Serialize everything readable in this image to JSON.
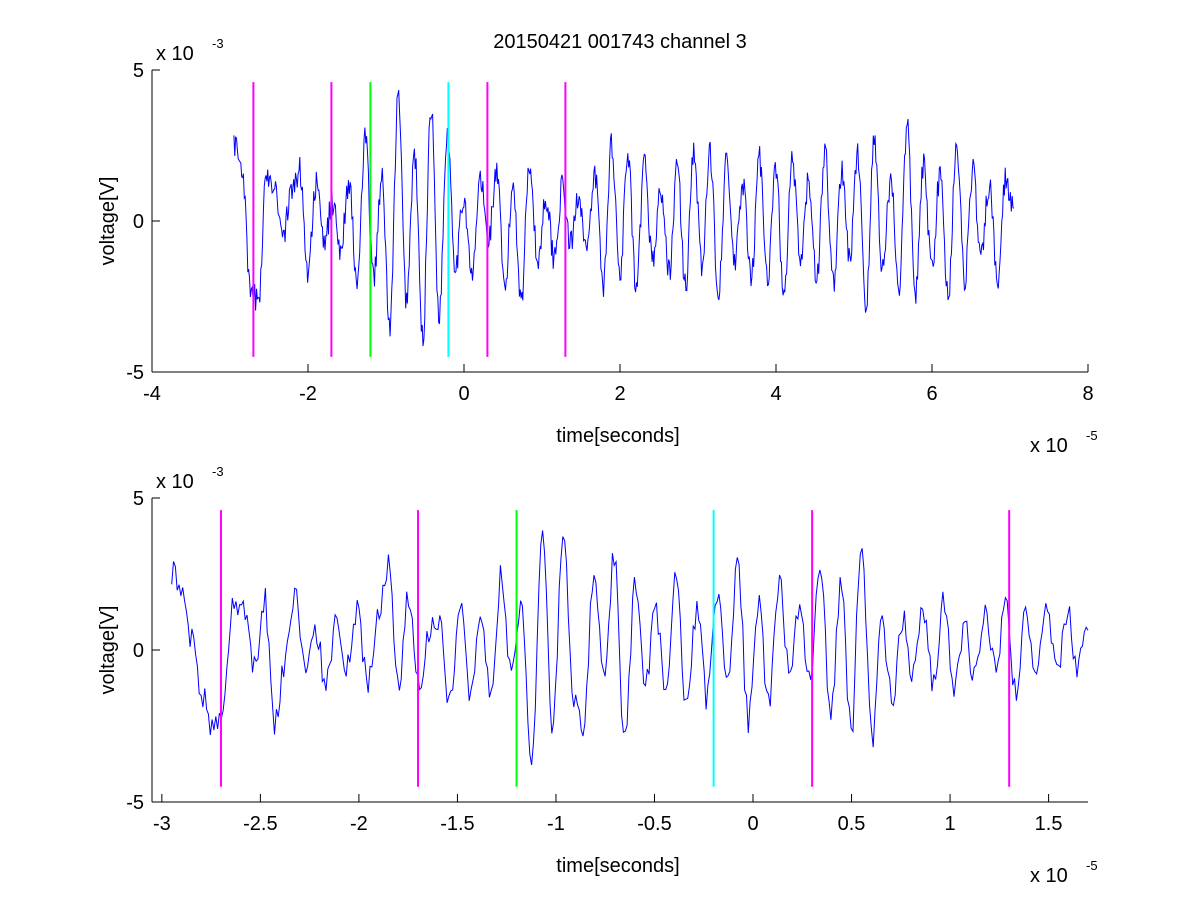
{
  "figure": {
    "title": "20150421 001743 channel 3"
  },
  "chart_data": [
    {
      "type": "line",
      "xlabel": "time[seconds]",
      "ylabel": "voltage[V]",
      "x_multiplier": {
        "base": "x 10",
        "exponent": "-5"
      },
      "y_multiplier": {
        "base": "x 10",
        "exponent": "-3"
      },
      "xlim": [
        -4,
        8
      ],
      "ylim": [
        -5,
        5
      ],
      "xticks": [
        -4,
        -2,
        0,
        2,
        4,
        6,
        8
      ],
      "yticks": [
        -5,
        0,
        5
      ],
      "grid": false,
      "series": [
        {
          "color": "#0000ff",
          "x_range": [
            -2.95,
            7.05
          ],
          "points": 900,
          "description_values": [
            2.6,
            1.8,
            -2.4,
            -2.6,
            1.6,
            1.2,
            -0.5,
            0.9,
            1.7,
            -1.6,
            1.2,
            -0.7,
            0.6,
            -0.9,
            1.3,
            -2.1,
            2.7,
            -1.9,
            1.4,
            -3.6,
            4.1,
            -2.6,
            2.2,
            -3.9,
            3.8,
            -3.1,
            3.0,
            -1.5,
            0.8,
            -1.9,
            1.4,
            -0.6,
            1.6,
            -2.3,
            1.2,
            -2.6,
            2.0,
            -1.4,
            0.8,
            -1.2,
            1.1,
            -0.8,
            0.9,
            -1.0,
            1.5,
            -2.1,
            2.6,
            -1.7,
            2.1,
            -2.4,
            1.9,
            -1.3,
            1.0,
            -1.7,
            1.8,
            -2.2,
            2.4,
            -1.5,
            2.2,
            -2.3,
            1.9,
            -1.4,
            1.2,
            -2.0,
            2.1,
            -1.8,
            1.7,
            -2.6,
            2.0,
            -1.4,
            1.3,
            -1.9,
            2.3,
            -2.1,
            1.6,
            -1.2,
            2.2,
            -2.8,
            2.7,
            -1.6,
            1.4,
            -2.2,
            3.1,
            -2.4,
            1.8,
            -1.5,
            1.5,
            -2.5,
            2.6,
            -1.9,
            1.7,
            -1.3,
            1.2,
            -2.0,
            1.4,
            0.3
          ]
        },
        {
          "name": "",
          "color": "#ff00ff",
          "type": "vline",
          "x": [
            -2.7,
            -1.7,
            0.3,
            1.3
          ],
          "y_range": [
            -4.5,
            4.6
          ]
        },
        {
          "name": "",
          "color": "#00ff00",
          "type": "vline",
          "x": [
            -1.2
          ],
          "y_range": [
            -4.5,
            4.6
          ]
        },
        {
          "name": "",
          "color": "#00ffff",
          "type": "vline",
          "x": [
            -0.2
          ],
          "y_range": [
            -4.5,
            4.6
          ]
        }
      ]
    },
    {
      "type": "line",
      "xlabel": "time[seconds]",
      "ylabel": "voltage[V]",
      "x_multiplier": {
        "base": "x 10",
        "exponent": "-5"
      },
      "y_multiplier": {
        "base": "x 10",
        "exponent": "-3"
      },
      "xlim": [
        -3.05,
        1.7
      ],
      "ylim": [
        -5,
        5
      ],
      "xticks": [
        -3,
        -2.5,
        -2,
        -1.5,
        -1,
        -0.5,
        0,
        0.5,
        1,
        1.5
      ],
      "yticks": [
        -5,
        0,
        5
      ],
      "grid": false,
      "series": [
        {
          "color": "#0000ff",
          "x_range": [
            -2.95,
            1.7
          ],
          "points": 500,
          "description_values": [
            2.6,
            1.8,
            0.4,
            -1.6,
            -2.6,
            -1.8,
            1.6,
            1.2,
            -0.6,
            1.7,
            -2.4,
            -0.4,
            1.7,
            -0.8,
            0.7,
            -1.2,
            0.9,
            -0.6,
            1.2,
            -1.0,
            1.0,
            2.8,
            -1.2,
            1.8,
            -1.3,
            0.7,
            1.0,
            -1.8,
            1.5,
            -1.3,
            1.3,
            -1.5,
            2.4,
            -0.8,
            1.4,
            -3.8,
            4.1,
            -2.7,
            3.9,
            -1.5,
            -2.4,
            2.3,
            -0.9,
            3.1,
            -3.1,
            2.0,
            -1.1,
            1.2,
            -1.4,
            2.4,
            -2.0,
            1.3,
            -1.6,
            2.0,
            -1.0,
            2.8,
            -2.3,
            1.4,
            -1.7,
            2.2,
            -0.8,
            1.5,
            -1.2,
            2.9,
            -2.2,
            2.2,
            -2.7,
            3.8,
            -3.0,
            0.8,
            -1.5,
            1.0,
            -0.8,
            1.4,
            -1.1,
            1.6,
            -1.2,
            0.8,
            -1.0,
            1.4,
            -0.7,
            1.5,
            -1.4,
            1.2,
            -0.8,
            1.6,
            -0.9,
            1.2,
            -0.5,
            0.7
          ]
        },
        {
          "name": "",
          "color": "#ff00ff",
          "type": "vline",
          "x": [
            -2.7,
            -1.7,
            0.3,
            1.3
          ],
          "y_range": [
            -4.5,
            4.6
          ]
        },
        {
          "name": "",
          "color": "#00ff00",
          "type": "vline",
          "x": [
            -1.2
          ],
          "y_range": [
            -4.5,
            4.6
          ]
        },
        {
          "name": "",
          "color": "#00ffff",
          "type": "vline",
          "x": [
            -0.2
          ],
          "y_range": [
            -4.5,
            4.6
          ]
        }
      ]
    }
  ]
}
